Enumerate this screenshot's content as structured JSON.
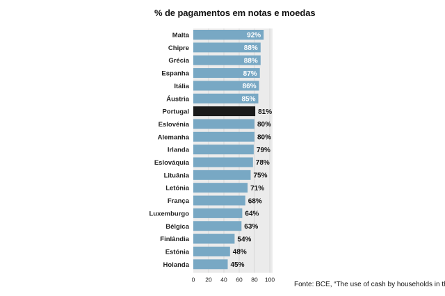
{
  "title": "% de pagamentos em notas e moedas",
  "source": "Fonte: BCE, “The use of cash by households in the",
  "colors": {
    "bar": "#78a8c4",
    "highlight": "#1a1a1a",
    "panel": "#ebebeb",
    "grid": "#d2d2d2",
    "inside_label": "#ffffff",
    "outside_label": "#111111"
  },
  "chart_data": {
    "type": "bar",
    "orientation": "horizontal",
    "title": "% de pagamentos em notas e moedas",
    "categories": [
      "Malta",
      "Chipre",
      "Grécia",
      "Espanha",
      "Itália",
      "Áustria",
      "Portugal",
      "Eslovénia",
      "Alemanha",
      "Irlanda",
      "Eslováquia",
      "Lituânia",
      "Letónia",
      "França",
      "Luxemburgo",
      "Bélgica",
      "Finlândia",
      "Estónia",
      "Holanda"
    ],
    "values": [
      92,
      88,
      88,
      87,
      86,
      85,
      81,
      80,
      80,
      79,
      78,
      75,
      71,
      68,
      64,
      63,
      54,
      48,
      45
    ],
    "value_labels": [
      "92%",
      "88%",
      "88%",
      "87%",
      "86%",
      "85%",
      "81%",
      "80%",
      "80%",
      "79%",
      "78%",
      "75%",
      "71%",
      "68%",
      "64%",
      "63%",
      "54%",
      "48%",
      "45%"
    ],
    "highlight": "Portugal",
    "xlim": [
      0,
      100
    ],
    "xticks": [
      0,
      20,
      40,
      60,
      80,
      100
    ],
    "xtick_labels": [
      "0",
      "20",
      "40",
      "60",
      "80",
      "100"
    ],
    "grid": true
  }
}
